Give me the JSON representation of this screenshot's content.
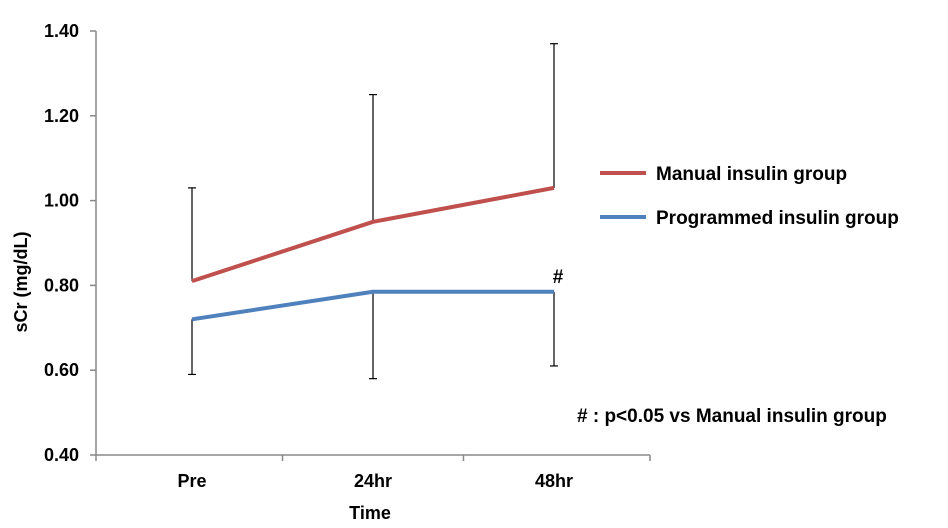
{
  "chart_data": {
    "type": "line",
    "categories": [
      "Pre",
      "24hr",
      "48hr"
    ],
    "xlabel": "Time",
    "ylabel": "sCr (mg/dL)",
    "ylim": [
      0.4,
      1.4
    ],
    "yticks": [
      "0.40",
      "0.60",
      "0.80",
      "1.00",
      "1.20",
      "1.40"
    ],
    "grid": false,
    "legend_position": "right",
    "series": [
      {
        "name": "Manual insulin group",
        "color": "#C0504D",
        "values": [
          0.81,
          0.95,
          1.03
        ],
        "error_upper": [
          1.03,
          1.25,
          1.37
        ],
        "error_lower": [
          null,
          null,
          null
        ]
      },
      {
        "name": "Programmed insulin group",
        "color": "#4F81BD",
        "values": [
          0.72,
          0.785,
          0.785
        ],
        "error_upper": [
          null,
          null,
          null
        ],
        "error_lower": [
          0.59,
          0.58,
          0.61
        ]
      }
    ],
    "significance_marker": {
      "symbol": "#",
      "category": "48hr",
      "series": "Programmed insulin group"
    },
    "annotation": "# : p<0.05 vs Manual insulin group"
  }
}
